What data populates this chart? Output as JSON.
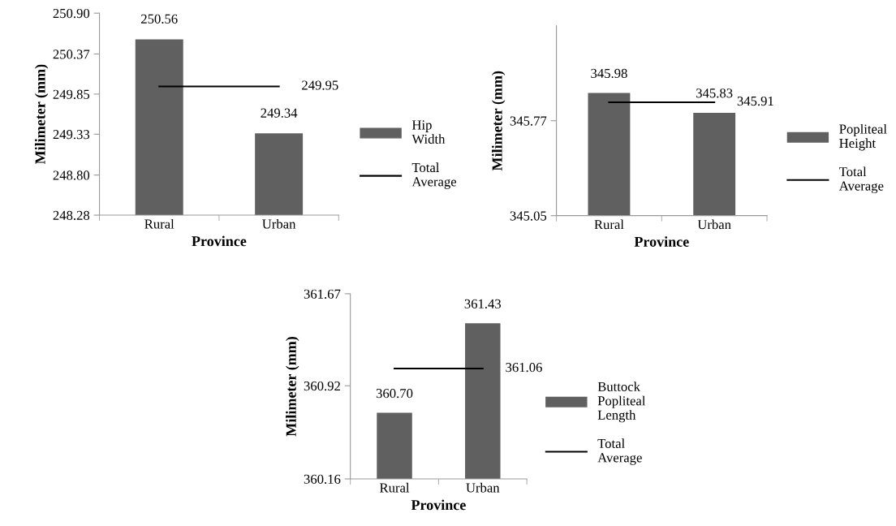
{
  "chart_data": [
    {
      "type": "bar",
      "xlabel": "Province",
      "ylabel": "Milimeter (mm)",
      "categories": [
        "Rural",
        "Urban"
      ],
      "series": [
        {
          "name": "Hip Width",
          "color": "#606060",
          "values": [
            250.56,
            249.34
          ],
          "value_labels": [
            "250.56",
            "249.34"
          ]
        },
        {
          "name": "Total Average",
          "type": "line",
          "color": "#000000",
          "values": [
            249.95,
            249.95
          ],
          "value_labels": [
            null,
            "249.95"
          ]
        }
      ],
      "ylim": [
        248.28,
        250.9
      ],
      "yticks": [
        {
          "value": 248.28,
          "label": "248.28"
        },
        {
          "value": 248.8,
          "label": "248.80"
        },
        {
          "value": 249.33,
          "label": "249.33"
        },
        {
          "value": 249.85,
          "label": "249.85"
        },
        {
          "value": 250.37,
          "label": "250.37"
        },
        {
          "value": 250.9,
          "label": "250.90"
        }
      ],
      "legend": "right",
      "grid": false
    },
    {
      "type": "bar",
      "xlabel": "Province",
      "ylabel": "Milimeter (mm)",
      "categories": [
        "Rural",
        "Urban"
      ],
      "series": [
        {
          "name": "Popliteal Height",
          "color": "#606060",
          "values": [
            345.98,
            345.83
          ],
          "value_labels": [
            "345.98",
            "345.83"
          ]
        },
        {
          "name": "Total Average",
          "type": "line",
          "color": "#000000",
          "values": [
            345.91,
            345.91
          ],
          "value_labels": [
            null,
            "345.91"
          ]
        }
      ],
      "ylim": [
        345.05,
        346.49
      ],
      "yticks": [
        345.05,
        345.77
      ],
      "legend": "right",
      "grid": false
    },
    {
      "type": "bar",
      "xlabel": "Province",
      "ylabel": "Milimeter (mm)",
      "categories": [
        "Rural",
        "Urban"
      ],
      "series": [
        {
          "name": "Buttock Popliteal Length",
          "color": "#606060",
          "values": [
            360.7,
            361.43
          ],
          "value_labels": [
            "360.70",
            "361.43"
          ]
        },
        {
          "name": "Total Average",
          "type": "line",
          "color": "#000000",
          "values": [
            361.06,
            361.06
          ],
          "value_labels": [
            null,
            "361.06"
          ]
        }
      ],
      "ylim": [
        360.16,
        361.67
      ],
      "yticks": [
        360.16,
        360.92,
        361.67
      ],
      "legend": "right",
      "grid": false
    }
  ]
}
